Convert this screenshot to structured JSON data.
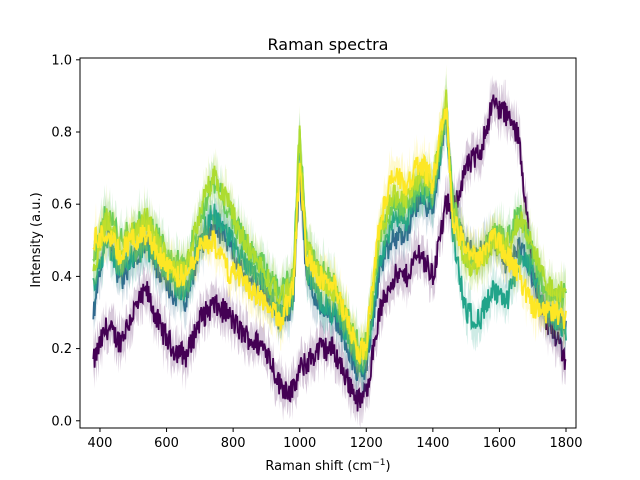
{
  "chart_data": {
    "type": "line",
    "title": "Raman spectra",
    "xlabel": "Raman shift (cm",
    "xlabel_sup": "−1",
    "xlabel_suffix": ")",
    "ylabel": "Intensity (a.u.)",
    "xlim": [
      340,
      1830
    ],
    "ylim": [
      -0.02,
      1.005
    ],
    "xticks": [
      400,
      600,
      800,
      1000,
      1200,
      1400,
      1600,
      1800
    ],
    "yticks": [
      0.0,
      0.2,
      0.4,
      0.6,
      0.8,
      1.0
    ],
    "ytick_labels": [
      "0.0",
      "0.2",
      "0.4",
      "0.6",
      "0.8",
      "1.0"
    ],
    "grid": false,
    "legend": "none",
    "shaded_band": true,
    "series": [
      {
        "color": "#440154",
        "x": [
          380,
          420,
          460,
          500,
          540,
          580,
          620,
          660,
          700,
          740,
          780,
          820,
          860,
          900,
          940,
          980,
          1000,
          1020,
          1060,
          1100,
          1140,
          1180,
          1200,
          1240,
          1280,
          1320,
          1360,
          1400,
          1440,
          1460,
          1500,
          1540,
          1580,
          1620,
          1660,
          1700,
          1740,
          1780,
          1800
        ],
        "y": [
          0.16,
          0.26,
          0.22,
          0.3,
          0.36,
          0.26,
          0.2,
          0.18,
          0.28,
          0.32,
          0.3,
          0.25,
          0.22,
          0.2,
          0.1,
          0.08,
          0.14,
          0.16,
          0.2,
          0.2,
          0.12,
          0.05,
          0.08,
          0.3,
          0.4,
          0.4,
          0.47,
          0.4,
          0.6,
          0.58,
          0.7,
          0.74,
          0.88,
          0.85,
          0.78,
          0.4,
          0.28,
          0.22,
          0.16
        ]
      },
      {
        "color": "#31688e",
        "x": [
          380,
          420,
          460,
          500,
          540,
          580,
          620,
          660,
          700,
          740,
          780,
          820,
          860,
          900,
          940,
          980,
          1000,
          1020,
          1060,
          1100,
          1140,
          1180,
          1200,
          1240,
          1280,
          1320,
          1360,
          1400,
          1440,
          1460,
          1500,
          1540,
          1580,
          1620,
          1660,
          1700,
          1740,
          1780,
          1800
        ],
        "y": [
          0.3,
          0.55,
          0.38,
          0.45,
          0.5,
          0.4,
          0.35,
          0.33,
          0.48,
          0.55,
          0.5,
          0.42,
          0.38,
          0.35,
          0.28,
          0.32,
          0.7,
          0.4,
          0.32,
          0.3,
          0.22,
          0.12,
          0.15,
          0.42,
          0.5,
          0.52,
          0.62,
          0.58,
          0.85,
          0.6,
          0.48,
          0.46,
          0.5,
          0.44,
          0.48,
          0.4,
          0.3,
          0.28,
          0.25
        ]
      },
      {
        "color": "#21a48a",
        "x": [
          380,
          420,
          460,
          500,
          540,
          580,
          620,
          660,
          700,
          740,
          780,
          820,
          860,
          900,
          940,
          980,
          1000,
          1020,
          1060,
          1100,
          1140,
          1180,
          1200,
          1240,
          1280,
          1320,
          1360,
          1400,
          1440,
          1460,
          1500,
          1540,
          1580,
          1620,
          1660,
          1700,
          1740,
          1780,
          1800
        ],
        "y": [
          0.38,
          0.5,
          0.42,
          0.46,
          0.48,
          0.44,
          0.38,
          0.36,
          0.5,
          0.58,
          0.52,
          0.46,
          0.42,
          0.38,
          0.3,
          0.34,
          0.78,
          0.42,
          0.34,
          0.3,
          0.25,
          0.15,
          0.18,
          0.45,
          0.55,
          0.56,
          0.64,
          0.6,
          0.86,
          0.52,
          0.3,
          0.28,
          0.36,
          0.32,
          0.45,
          0.42,
          0.3,
          0.28,
          0.24
        ]
      },
      {
        "color": "#5ec962",
        "x": [
          380,
          420,
          460,
          500,
          540,
          580,
          620,
          660,
          700,
          740,
          780,
          820,
          860,
          900,
          940,
          980,
          1000,
          1020,
          1060,
          1100,
          1140,
          1180,
          1200,
          1240,
          1280,
          1320,
          1360,
          1400,
          1440,
          1460,
          1500,
          1540,
          1580,
          1620,
          1660,
          1700,
          1740,
          1780,
          1800
        ],
        "y": [
          0.45,
          0.58,
          0.5,
          0.54,
          0.56,
          0.5,
          0.44,
          0.44,
          0.56,
          0.66,
          0.6,
          0.52,
          0.46,
          0.42,
          0.36,
          0.4,
          0.8,
          0.5,
          0.42,
          0.38,
          0.3,
          0.2,
          0.22,
          0.5,
          0.6,
          0.6,
          0.66,
          0.64,
          0.88,
          0.6,
          0.46,
          0.44,
          0.52,
          0.5,
          0.58,
          0.46,
          0.36,
          0.34,
          0.35
        ]
      },
      {
        "color": "#addc30",
        "x": [
          380,
          420,
          460,
          500,
          540,
          580,
          620,
          660,
          700,
          740,
          780,
          820,
          860,
          900,
          940,
          980,
          1000,
          1020,
          1060,
          1100,
          1140,
          1180,
          1200,
          1240,
          1280,
          1320,
          1360,
          1400,
          1440,
          1460,
          1500,
          1540,
          1580,
          1620,
          1660,
          1700,
          1740,
          1780,
          1800
        ],
        "y": [
          0.42,
          0.56,
          0.48,
          0.52,
          0.56,
          0.48,
          0.42,
          0.42,
          0.58,
          0.68,
          0.62,
          0.52,
          0.46,
          0.4,
          0.34,
          0.38,
          0.82,
          0.48,
          0.4,
          0.36,
          0.28,
          0.18,
          0.2,
          0.52,
          0.62,
          0.62,
          0.68,
          0.66,
          0.9,
          0.58,
          0.44,
          0.42,
          0.5,
          0.48,
          0.56,
          0.48,
          0.38,
          0.36,
          0.38
        ]
      },
      {
        "color": "#fde725",
        "x": [
          380,
          420,
          460,
          500,
          540,
          580,
          620,
          660,
          700,
          740,
          780,
          820,
          860,
          900,
          940,
          980,
          1000,
          1020,
          1060,
          1100,
          1140,
          1180,
          1200,
          1240,
          1280,
          1320,
          1360,
          1400,
          1440,
          1460,
          1500,
          1540,
          1580,
          1620,
          1660,
          1700,
          1740,
          1780,
          1800
        ],
        "y": [
          0.5,
          0.52,
          0.46,
          0.5,
          0.52,
          0.46,
          0.4,
          0.4,
          0.48,
          0.5,
          0.42,
          0.4,
          0.36,
          0.32,
          0.28,
          0.36,
          0.7,
          0.46,
          0.4,
          0.38,
          0.28,
          0.18,
          0.22,
          0.55,
          0.68,
          0.65,
          0.72,
          0.66,
          0.88,
          0.55,
          0.48,
          0.45,
          0.52,
          0.46,
          0.4,
          0.32,
          0.3,
          0.3,
          0.28
        ]
      }
    ]
  }
}
